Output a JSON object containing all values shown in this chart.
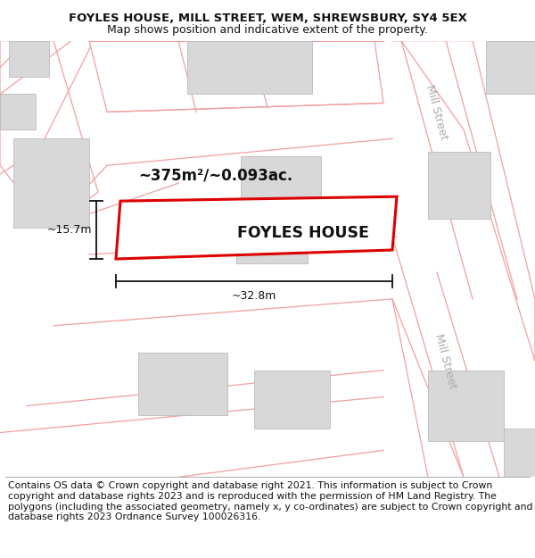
{
  "title_line1": "FOYLES HOUSE, MILL STREET, WEM, SHREWSBURY, SY4 5EX",
  "title_line2": "Map shows position and indicative extent of the property.",
  "footer_text": "Contains OS data © Crown copyright and database right 2021. This information is subject to Crown copyright and database rights 2023 and is reproduced with the permission of HM Land Registry. The polygons (including the associated geometry, namely x, y co-ordinates) are subject to Crown copyright and database rights 2023 Ordnance Survey 100026316.",
  "background_color": "#ffffff",
  "map_bg": "#ffffff",
  "road_color": "#f0a0a0",
  "building_fill": "#d8d8d8",
  "building_edge": "#bbbbbb",
  "highlight_color": "#dd0000",
  "street_label_color": "#aaaaaa",
  "area_label": "~375m²/~0.093ac.",
  "width_label": "~32.8m",
  "height_label": "~15.7m",
  "house_label": "FOYLES HOUSE",
  "street_name": "Mill Street",
  "title_fontsize": 9.5,
  "subtitle_fontsize": 9,
  "footer_fontsize": 7.8,
  "title_bold": true,
  "subtitle_bold": false,
  "map_border_color": "#cccccc",
  "dim_color": "#111111",
  "dim_lw": 1.3,
  "prop_lw": 2.2
}
